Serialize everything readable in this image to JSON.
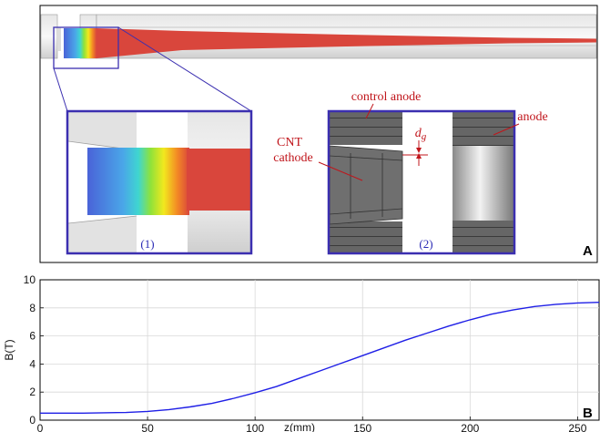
{
  "panel_a": {
    "letter": "A",
    "annotations": {
      "control_anode": "control anode",
      "anode": "anode",
      "cnt": "CNT",
      "cathode": "cathode",
      "gap": "dg"
    },
    "inset_labels": [
      "(1)",
      "(2)"
    ]
  },
  "panel_b": {
    "letter": "B"
  },
  "colors": {
    "beam": "#d9463c",
    "frame": "#3b2fb0",
    "curve": "#1f1fe6",
    "annotation": "#c0151b"
  },
  "chart_data": {
    "type": "line",
    "xlabel": "z(mm)",
    "ylabel": "B(T)",
    "xlim": [
      0,
      260
    ],
    "ylim": [
      0,
      10
    ],
    "xticks": [
      0,
      50,
      100,
      150,
      200,
      250
    ],
    "yticks": [
      0,
      2,
      4,
      6,
      8,
      10
    ],
    "grid": true,
    "series": [
      {
        "x": [
          0,
          20,
          40,
          50,
          60,
          70,
          80,
          90,
          100,
          110,
          120,
          130,
          140,
          150,
          160,
          170,
          180,
          190,
          200,
          210,
          220,
          230,
          240,
          250,
          260
        ],
        "values": [
          0.5,
          0.5,
          0.55,
          0.62,
          0.75,
          0.95,
          1.2,
          1.55,
          1.95,
          2.4,
          2.95,
          3.5,
          4.05,
          4.6,
          5.15,
          5.7,
          6.2,
          6.7,
          7.15,
          7.55,
          7.85,
          8.1,
          8.25,
          8.35,
          8.4
        ]
      }
    ]
  }
}
